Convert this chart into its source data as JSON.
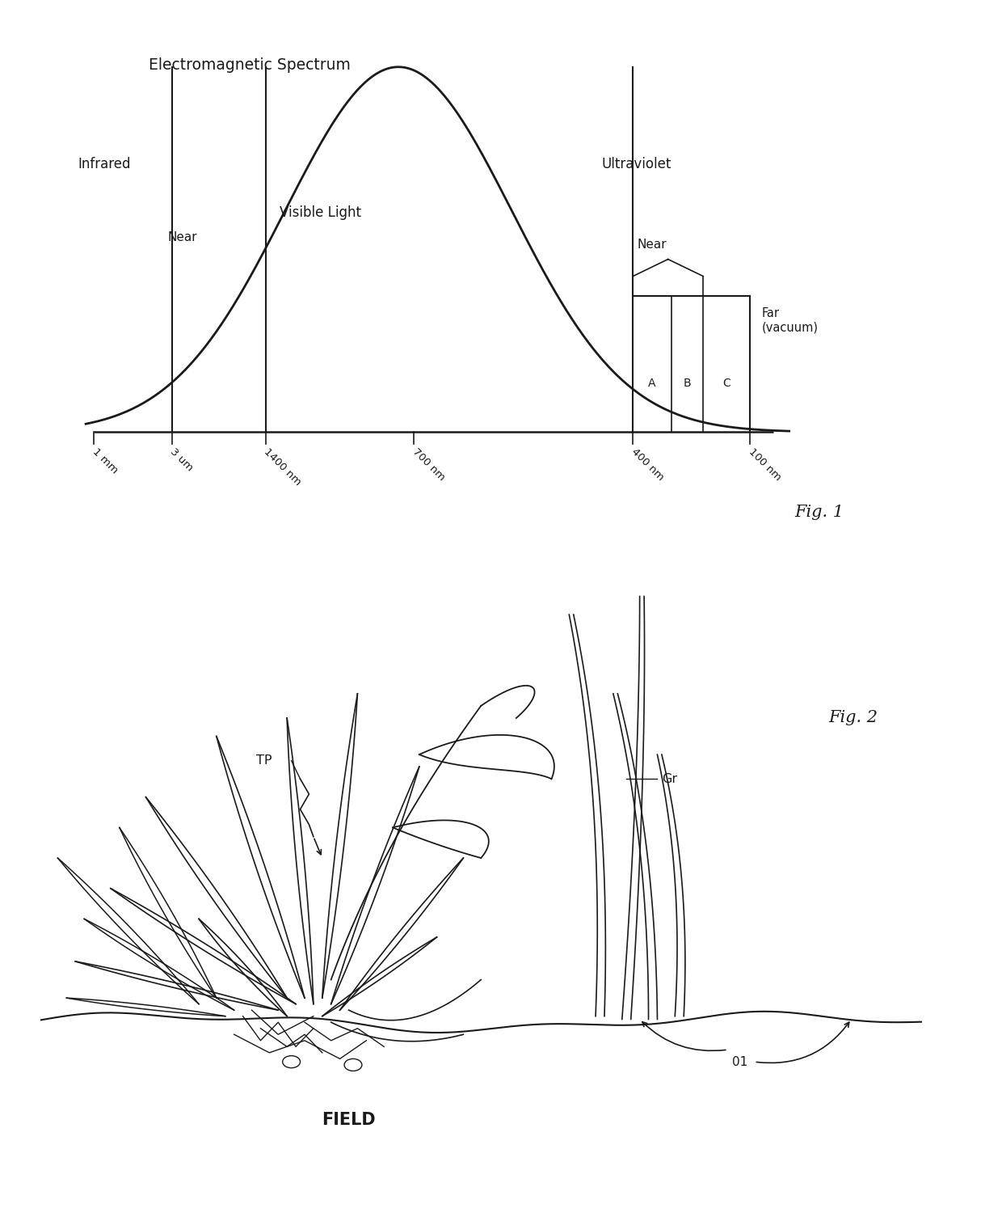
{
  "fig1_title": "Electromagnetic Spectrum",
  "fig1_label": "Fig. 1",
  "fig2_label": "Fig. 2",
  "infrared_label": "Infrared",
  "near_ir_label": "Near",
  "visible_label": "Visible Light",
  "ultraviolet_label": "Ultraviolet",
  "near_uv_label": "Near",
  "far_uv_label": "Far\n(vacuum)",
  "uv_bands": [
    "A",
    "B",
    "C"
  ],
  "x_tick_labels": [
    "1 mm",
    "3 um",
    "1400 nm",
    "700 nm",
    "400 nm",
    "100 nm"
  ],
  "field_label": "FIELD",
  "tp_label": "TP",
  "gr_label": "Gr",
  "field_code": "01",
  "bg_color": "#ffffff",
  "line_color": "#1a1a1a",
  "font_color": "#1a1a1a"
}
